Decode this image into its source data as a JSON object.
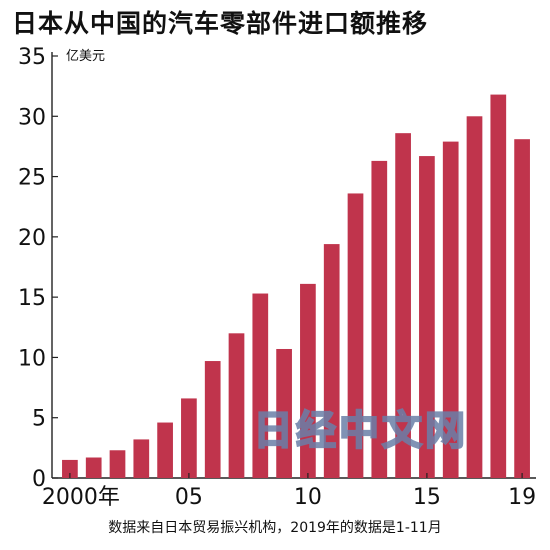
{
  "chart_data": {
    "type": "bar",
    "title": "日本从中国的汽车零部件进口额推移",
    "ylabel": "亿美元",
    "xlabel": "",
    "ylim": [
      0,
      35
    ],
    "yticks": [
      0,
      5,
      10,
      15,
      20,
      25,
      30,
      35
    ],
    "categories": [
      "2000",
      "2001",
      "2002",
      "2003",
      "2004",
      "2005",
      "2006",
      "2007",
      "2008",
      "2009",
      "2010",
      "2011",
      "2012",
      "2013",
      "2014",
      "2015",
      "2016",
      "2017",
      "2018",
      "2019"
    ],
    "x_tick_labels": [
      {
        "category": "2000",
        "label": "2000年"
      },
      {
        "category": "2005",
        "label": "05"
      },
      {
        "category": "2010",
        "label": "10"
      },
      {
        "category": "2015",
        "label": "15"
      },
      {
        "category": "2019",
        "label": "19"
      }
    ],
    "values": [
      1.5,
      1.7,
      2.3,
      3.2,
      4.6,
      6.6,
      9.7,
      12.0,
      15.3,
      10.7,
      16.1,
      19.4,
      23.6,
      26.3,
      28.6,
      26.7,
      27.9,
      30.0,
      31.8,
      28.1
    ],
    "bar_color": "#c0344c",
    "grid": false,
    "note": "数据来自日本贸易振兴机构，2019年的数据是1-11月"
  },
  "watermark": "日经中文网"
}
